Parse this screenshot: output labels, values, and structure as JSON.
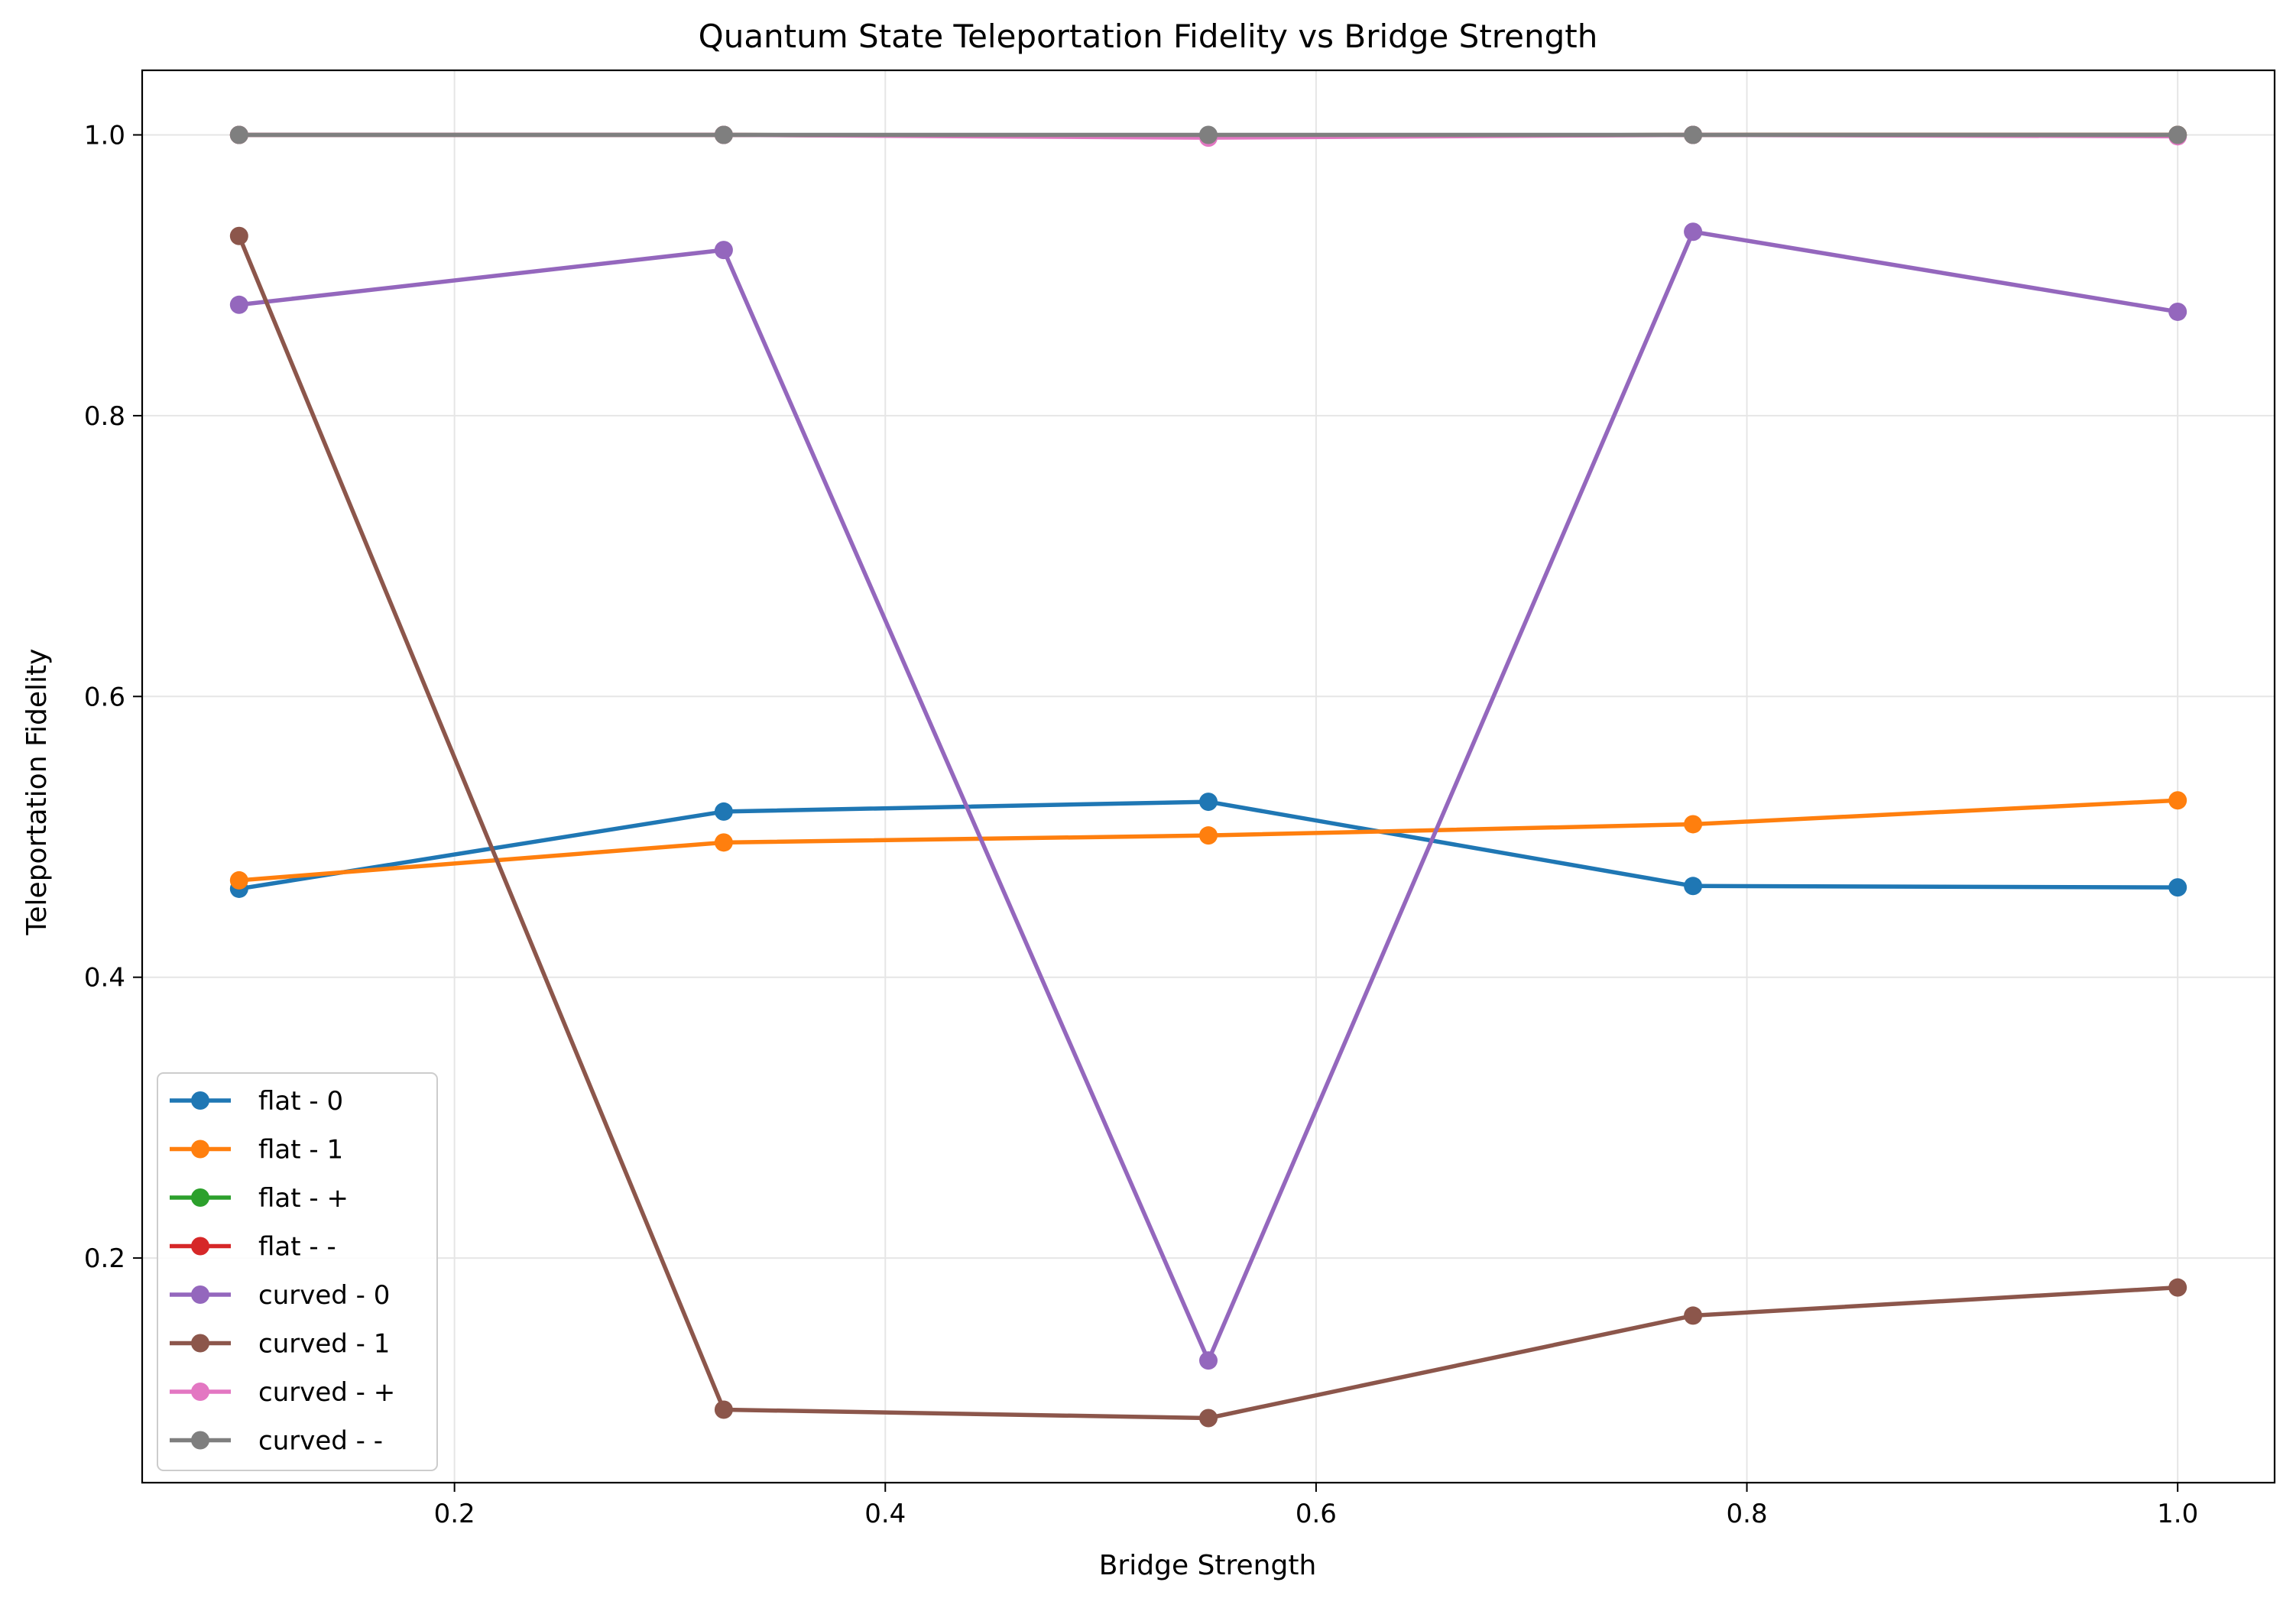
{
  "chart_data": {
    "type": "line",
    "title": "Quantum State Teleportation Fidelity vs Bridge Strength",
    "xlabel": "Bridge Strength",
    "ylabel": "Teleportation Fidelity",
    "xlim": [
      0.055,
      1.045
    ],
    "ylim": [
      0.04,
      1.046
    ],
    "xticks": [
      0.2,
      0.4,
      0.6,
      0.8,
      1.0
    ],
    "xtick_labels": [
      "0.2",
      "0.4",
      "0.6",
      "0.8",
      "1.0"
    ],
    "yticks": [
      0.2,
      0.4,
      0.6,
      0.8,
      1.0
    ],
    "ytick_labels": [
      "0.2",
      "0.4",
      "0.6",
      "0.8",
      "1.0"
    ],
    "grid": true,
    "legend_position": "lower-left",
    "x": [
      0.1,
      0.325,
      0.55,
      0.775,
      1.0
    ],
    "series": [
      {
        "name": "flat - 0",
        "color": "#1f77b4",
        "values": [
          0.463,
          0.518,
          0.525,
          0.465,
          0.464
        ]
      },
      {
        "name": "flat - 1",
        "color": "#ff7f0e",
        "values": [
          0.469,
          0.496,
          0.501,
          0.509,
          0.526
        ]
      },
      {
        "name": "flat - +",
        "color": "#2ca02c",
        "values": [
          1.0,
          1.0,
          0.999,
          1.0,
          1.0
        ]
      },
      {
        "name": "flat - -",
        "color": "#d62728",
        "values": [
          1.0,
          1.0,
          0.999,
          1.0,
          1.0
        ]
      },
      {
        "name": "curved - 0",
        "color": "#9467bd",
        "values": [
          0.879,
          0.918,
          0.127,
          0.931,
          0.874
        ]
      },
      {
        "name": "curved - 1",
        "color": "#8c564b",
        "values": [
          0.928,
          0.092,
          0.086,
          0.159,
          0.179
        ]
      },
      {
        "name": "curved - +",
        "color": "#e377c2",
        "values": [
          1.0,
          1.0,
          0.998,
          1.0,
          0.999
        ]
      },
      {
        "name": "curved - -",
        "color": "#7f7f7f",
        "values": [
          1.0,
          1.0,
          1.0,
          1.0,
          1.0
        ]
      }
    ]
  }
}
